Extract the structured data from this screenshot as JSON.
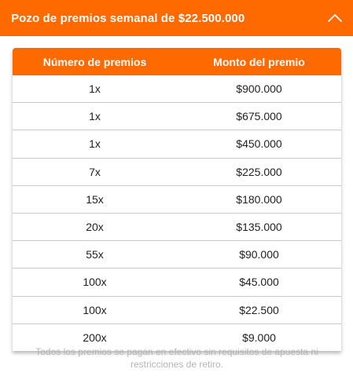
{
  "header": {
    "title": "Pozo de premios semanal de $22.500.000",
    "toggle_icon": "chevron-up-icon"
  },
  "colors": {
    "accent": "#ff6a00",
    "text": "#222222",
    "footnote": "#b5b5b5"
  },
  "table": {
    "columns": [
      "Número de premios",
      "Monto del premio"
    ],
    "rows": [
      {
        "count": "1x",
        "amount": "$900.000"
      },
      {
        "count": "1x",
        "amount": "$675.000"
      },
      {
        "count": "1x",
        "amount": "$450.000"
      },
      {
        "count": "7x",
        "amount": "$225.000"
      },
      {
        "count": "15x",
        "amount": "$180.000"
      },
      {
        "count": "20x",
        "amount": "$135.000"
      },
      {
        "count": "55x",
        "amount": "$90.000"
      },
      {
        "count": "100x",
        "amount": "$45.000"
      },
      {
        "count": "100x",
        "amount": "$22.500"
      },
      {
        "count": "200x",
        "amount": "$9.000"
      }
    ]
  },
  "footnote": "Todos los premios se pagan en efectivo sin requisitos de apuesta ni restricciones de retiro."
}
